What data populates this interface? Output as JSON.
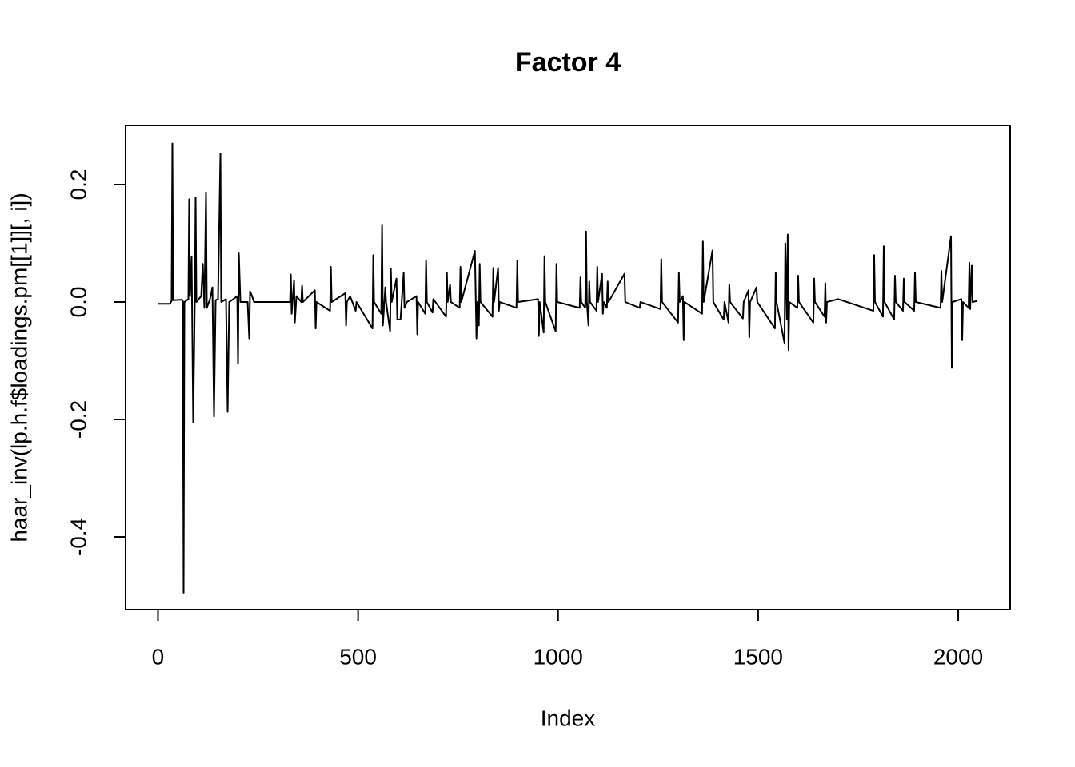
{
  "chart_data": {
    "type": "line",
    "title": "Factor 4",
    "xlabel": "Index",
    "ylabel": "haar_inv(lp.h.f$loadings.pm[[1]][, i])",
    "color": "#000000",
    "xlim": [
      -80.9,
      2129.9
    ],
    "ylim": [
      -0.5238,
      0.3007
    ],
    "xticks": [
      0,
      500,
      1000,
      1500,
      2000
    ],
    "yticks": [
      -0.4,
      -0.2,
      {
        "value": 0,
        "label": "0.0"
      },
      0.2
    ],
    "x": [
      1,
      30,
      34,
      36,
      38,
      60,
      62,
      64,
      66,
      76,
      78,
      80,
      84,
      88,
      92,
      94,
      96,
      108,
      112,
      116,
      120,
      122,
      130,
      136,
      140,
      144,
      150,
      156,
      158,
      170,
      174,
      178,
      198,
      200,
      202,
      206,
      224,
      228,
      230,
      234,
      240,
      260,
      330,
      332,
      334,
      340,
      342,
      346,
      358,
      360,
      362,
      392,
      394,
      396,
      430,
      432,
      434,
      468,
      470,
      472,
      480,
      494,
      496,
      536,
      538,
      540,
      558,
      560,
      562,
      568,
      570,
      580,
      582,
      584,
      596,
      598,
      606,
      614,
      616,
      622,
      646,
      648,
      650,
      668,
      670,
      672,
      686,
      688,
      720,
      722,
      724,
      730,
      732,
      754,
      756,
      758,
      792,
      796,
      798,
      802,
      804,
      806,
      836,
      838,
      840,
      850,
      852,
      854,
      896,
      898,
      900,
      950,
      952,
      954,
      964,
      966,
      968,
      994,
      996,
      998,
      1054,
      1056,
      1058,
      1068,
      1070,
      1072,
      1076,
      1078,
      1080,
      1096,
      1098,
      1100,
      1110,
      1112,
      1114,
      1122,
      1124,
      1126,
      1166,
      1168,
      1204,
      1206,
      1256,
      1258,
      1260,
      1300,
      1302,
      1304,
      1312,
      1314,
      1316,
      1360,
      1362,
      1364,
      1386,
      1388,
      1414,
      1416,
      1426,
      1428,
      1430,
      1462,
      1464,
      1476,
      1478,
      1480,
      1496,
      1498,
      1542,
      1544,
      1546,
      1566,
      1568,
      1572,
      1574,
      1576,
      1578,
      1598,
      1600,
      1602,
      1638,
      1640,
      1642,
      1666,
      1668,
      1670,
      1672,
      1700,
      1788,
      1790,
      1792,
      1812,
      1814,
      1816,
      1840,
      1842,
      1844,
      1862,
      1864,
      1866,
      1890,
      1892,
      1894,
      1956,
      1958,
      1960,
      1982,
      1984,
      1986,
      2008,
      2010,
      2012,
      2026,
      2028,
      2030,
      2034,
      2036,
      2048
    ],
    "values": [
      -0.003,
      -0.003,
      0.002,
      0.27,
      0.003,
      0.004,
      0.002,
      -0.495,
      0.0,
      0.005,
      0.175,
      0.01,
      0.077,
      -0.205,
      0.005,
      0.178,
      0.0,
      0.01,
      0.065,
      -0.01,
      0.187,
      -0.01,
      0.005,
      0.025,
      -0.195,
      0.003,
      0.005,
      0.253,
      0.0,
      0.005,
      -0.187,
      0.0,
      0.01,
      -0.105,
      0.083,
      0.0,
      0.0,
      -0.062,
      0.018,
      0.012,
      0.0,
      0.0,
      0.0,
      0.047,
      -0.02,
      0.037,
      -0.035,
      0.01,
      0.0,
      0.028,
      0.0,
      0.02,
      -0.045,
      0.0,
      -0.015,
      0.06,
      0.0,
      0.015,
      -0.04,
      0.0,
      0.01,
      -0.015,
      0.0,
      -0.045,
      0.08,
      0.0,
      -0.02,
      0.132,
      -0.04,
      0.025,
      0.0,
      -0.05,
      0.057,
      0.0,
      0.04,
      -0.03,
      -0.03,
      0.05,
      -0.01,
      0.0,
      0.01,
      -0.055,
      0.0,
      -0.02,
      0.07,
      0.0,
      -0.018,
      0.005,
      -0.025,
      0.05,
      0.0,
      0.03,
      0.0,
      -0.01,
      0.06,
      0.0,
      0.087,
      -0.062,
      0.0,
      -0.04,
      0.065,
      0.0,
      -0.025,
      0.058,
      0.0,
      0.058,
      -0.015,
      0.0,
      -0.01,
      0.07,
      0.0,
      0.005,
      -0.058,
      0.0,
      -0.052,
      0.078,
      0.0,
      -0.05,
      0.065,
      0.0,
      -0.01,
      0.042,
      0.0,
      -0.01,
      0.12,
      0.0,
      -0.04,
      0.035,
      0.0,
      -0.015,
      0.06,
      0.0,
      0.048,
      -0.02,
      0.0,
      -0.01,
      0.035,
      0.0,
      0.048,
      0.0,
      -0.01,
      0.0,
      -0.012,
      0.073,
      0.0,
      -0.035,
      0.05,
      0.0,
      0.01,
      -0.065,
      0.0,
      -0.02,
      0.103,
      0.0,
      0.088,
      0.0,
      -0.03,
      0.0,
      -0.035,
      0.03,
      0.0,
      -0.028,
      0.0,
      0.02,
      -0.06,
      0.0,
      0.025,
      0.0,
      -0.045,
      0.05,
      0.0,
      -0.07,
      0.1,
      -0.03,
      0.115,
      -0.082,
      0.0,
      -0.01,
      0.045,
      0.0,
      -0.035,
      0.04,
      0.0,
      -0.025,
      0.032,
      -0.035,
      0.0,
      0.005,
      -0.015,
      0.08,
      0.0,
      -0.025,
      0.095,
      0.0,
      -0.03,
      0.045,
      0.0,
      -0.015,
      0.04,
      0.0,
      -0.015,
      0.05,
      0.0,
      -0.01,
      0.053,
      0.0,
      0.112,
      -0.112,
      0.0,
      0.005,
      -0.065,
      0.0,
      -0.01,
      0.067,
      -0.012,
      0.062,
      0.0,
      0.002
    ]
  }
}
